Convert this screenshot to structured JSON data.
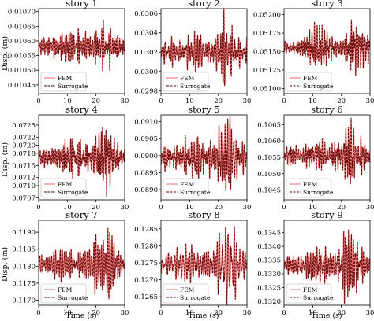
{
  "figure": {
    "ylabel": "Disp. (m)",
    "xlabel": "Time (s)",
    "legend": [
      "FEM",
      "Surrogate"
    ]
  },
  "colors": {
    "fem": "#f08080",
    "surrogate": "#5a0000"
  },
  "chart_data": [
    {
      "type": "line",
      "title": "story 1",
      "xlim": [
        0,
        30
      ],
      "xticks": [
        0,
        10,
        20,
        30
      ],
      "ylim": [
        0.01042,
        0.01071
      ],
      "yticks": [
        0.01045,
        0.0105,
        0.01055,
        0.0106,
        0.01065,
        0.0107
      ],
      "ytick_labels": [
        "0.01045",
        "0.01050",
        "0.01055",
        "0.01060",
        "0.01065",
        "0.01070"
      ],
      "center": 0.01058,
      "amp_base": 3e-05,
      "amp_peak": 8e-05,
      "legend": "bottom-left",
      "series": [
        {
          "name": "FEM"
        },
        {
          "name": "Surrogate"
        }
      ]
    },
    {
      "type": "line",
      "title": "story 2",
      "xlim": [
        0,
        30
      ],
      "xticks": [
        0,
        10,
        20,
        30
      ],
      "ylim": [
        0.02977,
        0.03065
      ],
      "yticks": [
        0.0298,
        0.03,
        0.0302,
        0.0304,
        0.0306
      ],
      "ytick_labels": [
        "0.0298",
        "0.0300",
        "0.0302",
        "0.0304",
        "0.0306"
      ],
      "center": 0.0302,
      "amp_base": 0.0001,
      "amp_peak": 0.0003,
      "legend": "bottom-left",
      "series": [
        {
          "name": "FEM"
        },
        {
          "name": "Surrogate"
        }
      ]
    },
    {
      "type": "line",
      "title": "story 3",
      "xlim": [
        0,
        30
      ],
      "xticks": [
        0,
        10,
        20,
        30
      ],
      "ylim": [
        0.05093,
        0.05208
      ],
      "yticks": [
        0.051,
        0.05125,
        0.0515,
        0.05175,
        0.052
      ],
      "ytick_labels": [
        "0.05100",
        "0.05125",
        "0.05150",
        "0.05175",
        "0.05200"
      ],
      "center": 0.05155,
      "amp_base": 0.00012,
      "amp_peak": 0.0004,
      "legend": "bottom-left",
      "series": [
        {
          "name": "FEM"
        },
        {
          "name": "Surrogate"
        }
      ]
    },
    {
      "type": "line",
      "title": "story 4",
      "xlim": [
        0,
        30
      ],
      "xticks": [
        0,
        10,
        20,
        30
      ],
      "ylim": [
        0.07065,
        0.07275
      ],
      "yticks": [
        0.0707,
        0.071,
        0.0712,
        0.0715,
        0.0718,
        0.072,
        0.0722,
        0.0725
      ],
      "ytick_labels": [
        "0.0707",
        "0.0710",
        "0.0712",
        "0.0715",
        "0.0718",
        "0.0720",
        "0.0722",
        "0.0725"
      ],
      "center": 0.0717,
      "amp_base": 0.0002,
      "amp_peak": 0.0008,
      "legend": "bottom-left",
      "series": [
        {
          "name": "FEM"
        },
        {
          "name": "Surrogate"
        }
      ]
    },
    {
      "type": "line",
      "title": "story 5",
      "xlim": [
        0,
        30
      ],
      "xticks": [
        0,
        10,
        20,
        30
      ],
      "ylim": [
        0.0887,
        0.0912
      ],
      "yticks": [
        0.089,
        0.0895,
        0.09,
        0.0905,
        0.091
      ],
      "ytick_labels": [
        "0.0890",
        "0.0895",
        "0.0900",
        "0.0905",
        "0.0910"
      ],
      "center": 0.08995,
      "amp_base": 0.0003,
      "amp_peak": 0.0011,
      "legend": "bottom-left",
      "series": [
        {
          "name": "FEM"
        },
        {
          "name": "Surrogate"
        }
      ]
    },
    {
      "type": "line",
      "title": "story 6",
      "xlim": [
        0,
        30
      ],
      "xticks": [
        0,
        10,
        20,
        30
      ],
      "ylim": [
        0.1042,
        0.1068
      ],
      "yticks": [
        0.1045,
        0.105,
        0.1055,
        0.106,
        0.1065
      ],
      "ytick_labels": [
        "0.1045",
        "0.1050",
        "0.1055",
        "0.1060",
        "0.1065"
      ],
      "center": 0.10555,
      "amp_base": 0.0003,
      "amp_peak": 0.0011,
      "legend": "bottom-left",
      "series": [
        {
          "name": "FEM"
        },
        {
          "name": "Surrogate"
        }
      ]
    },
    {
      "type": "line",
      "title": "story 7",
      "xlim": [
        0,
        30
      ],
      "xticks": [
        0,
        10,
        20,
        30
      ],
      "ylim": [
        0.11685,
        0.11935
      ],
      "yticks": [
        0.117,
        0.1175,
        0.118,
        0.1185,
        0.119
      ],
      "ytick_labels": [
        "0.1170",
        "0.1175",
        "0.1180",
        "0.1185",
        "0.1190"
      ],
      "center": 0.11805,
      "amp_base": 0.0003,
      "amp_peak": 0.0011,
      "legend": "bottom-left",
      "series": [
        {
          "name": "FEM"
        },
        {
          "name": "Surrogate"
        }
      ]
    },
    {
      "type": "line",
      "title": "story 8",
      "xlim": [
        0,
        30
      ],
      "xticks": [
        0,
        10,
        20,
        30
      ],
      "ylim": [
        0.12625,
        0.12875
      ],
      "yticks": [
        0.1265,
        0.127,
        0.1275,
        0.128,
        0.1285
      ],
      "ytick_labels": [
        "0.1265",
        "0.1270",
        "0.1275",
        "0.1280",
        "0.1285"
      ],
      "center": 0.12745,
      "amp_base": 0.0003,
      "amp_peak": 0.0011,
      "legend": "bottom-left",
      "series": [
        {
          "name": "FEM"
        },
        {
          "name": "Surrogate"
        }
      ]
    },
    {
      "type": "line",
      "title": "story 9",
      "xlim": [
        0,
        30
      ],
      "xticks": [
        0,
        10,
        20,
        30
      ],
      "ylim": [
        0.13185,
        0.13495
      ],
      "yticks": [
        0.132,
        0.1325,
        0.133,
        0.1335,
        0.134,
        0.1345
      ],
      "ytick_labels": [
        "0.1320",
        "0.1325",
        "0.1330",
        "0.1335",
        "0.1340",
        "0.1345"
      ],
      "center": 0.1333,
      "amp_base": 0.0003,
      "amp_peak": 0.0013,
      "legend": "bottom-left",
      "series": [
        {
          "name": "FEM"
        },
        {
          "name": "Surrogate"
        }
      ]
    }
  ]
}
